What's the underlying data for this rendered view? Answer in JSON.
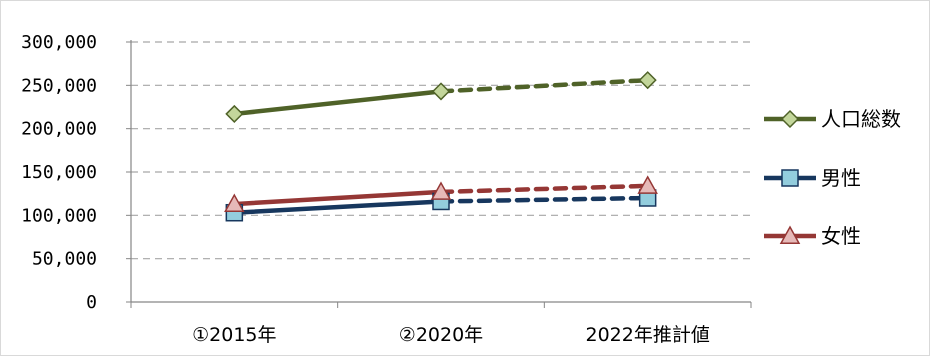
{
  "chart_data": {
    "type": "line",
    "categories": [
      "①2015年",
      "②2020年",
      "2022年推計値"
    ],
    "ylim": [
      0,
      300000
    ],
    "yticks": [
      "0",
      "50,000",
      "100,000",
      "150,000",
      "200,000",
      "250,000",
      "300,000"
    ],
    "grid": true,
    "legend_position": "right",
    "dashed_segment": "from ②2020年 to 2022年推計値 (estimate)",
    "series": [
      {
        "name": "人口総数",
        "values": [
          217000,
          243000,
          256000
        ],
        "color": "#4f6228",
        "marker": "diamond",
        "marker_fill": "#c3d69b"
      },
      {
        "name": "男性",
        "values": [
          103000,
          116000,
          120000
        ],
        "color": "#17375e",
        "marker": "square",
        "marker_fill": "#93cddd"
      },
      {
        "name": "女性",
        "values": [
          113000,
          127000,
          134000
        ],
        "color": "#953735",
        "marker": "triangle",
        "marker_fill": "#e6b9b8"
      }
    ]
  }
}
